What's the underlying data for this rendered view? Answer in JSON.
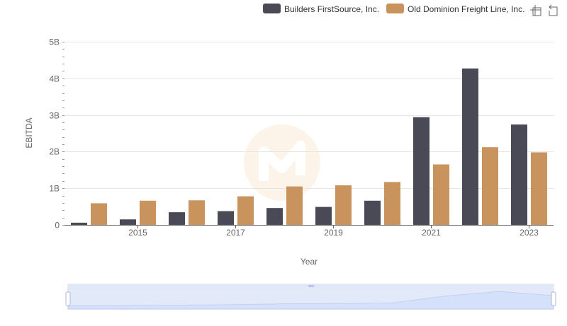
{
  "chart_data": {
    "type": "bar",
    "title": "",
    "xlabel": "Year",
    "ylabel": "EBITDA",
    "ylim": [
      0,
      5000000000
    ],
    "y_ticks": [
      {
        "value": 0,
        "label": "0"
      },
      {
        "value": 1000000000,
        "label": "1B"
      },
      {
        "value": 2000000000,
        "label": "2B"
      },
      {
        "value": 3000000000,
        "label": "3B"
      },
      {
        "value": 4000000000,
        "label": "4B"
      },
      {
        "value": 5000000000,
        "label": "5B"
      }
    ],
    "categories": [
      "2014",
      "2015",
      "2016",
      "2017",
      "2018",
      "2019",
      "2020",
      "2021",
      "2022",
      "2023"
    ],
    "x_tick_labels": [
      "2015",
      "2017",
      "2019",
      "2021",
      "2023"
    ],
    "series": [
      {
        "name": "Builders FirstSource, Inc.",
        "color": "#4a4a56",
        "values": [
          60000000,
          150000000,
          345000000,
          375000000,
          460000000,
          490000000,
          660000000,
          2940000000,
          4270000000,
          2740000000
        ]
      },
      {
        "name": "Old Dominion Freight Line, Inc.",
        "color": "#c9935e",
        "values": [
          590000000,
          660000000,
          670000000,
          780000000,
          1050000000,
          1080000000,
          1170000000,
          1650000000,
          2120000000,
          1980000000
        ]
      }
    ],
    "legend_position": "top-right",
    "grid": true
  },
  "ui": {
    "toolbox": [
      {
        "name": "zoom-icon"
      },
      {
        "name": "restore-icon"
      }
    ],
    "watermark_icon": "brand-logo-icon",
    "accent": "#d6e1fb"
  }
}
